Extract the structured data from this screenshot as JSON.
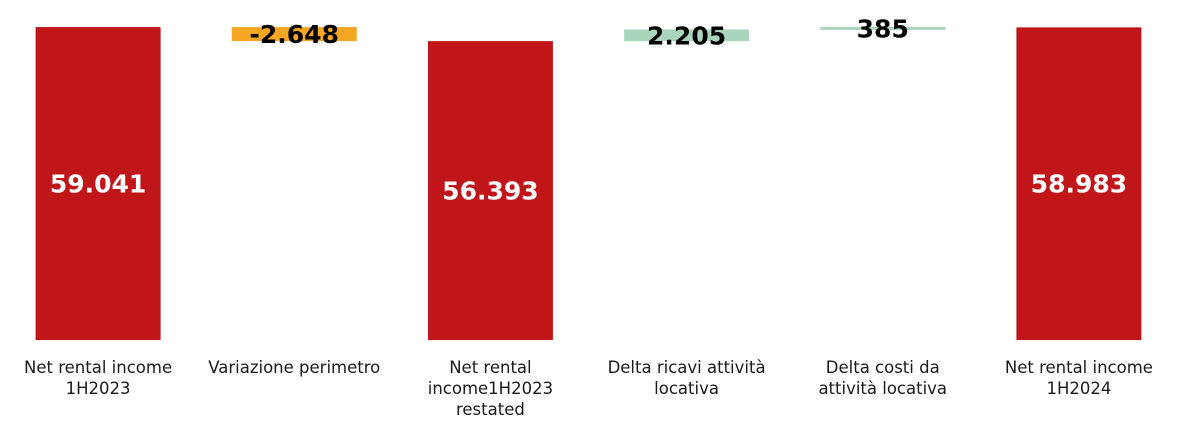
{
  "chart_data": {
    "type": "bar",
    "subtype": "waterfall",
    "categories": [
      [
        "Net rental income",
        "1H2023"
      ],
      [
        "Variazione perimetro"
      ],
      [
        "Net rental",
        "income1H2023",
        "restated"
      ],
      [
        "Delta ricavi attività",
        "locativa"
      ],
      [
        "Delta costi da",
        "attività locativa"
      ],
      [
        "Net rental income",
        "1H2024"
      ]
    ],
    "values": [
      59041,
      -2648,
      56393,
      2205,
      385,
      58983
    ],
    "kinds": [
      "total",
      "delta",
      "total",
      "delta",
      "delta",
      "total"
    ],
    "value_labels": [
      "59.041",
      "-2.648",
      "56.393",
      "2.205",
      "385",
      "58.983"
    ],
    "ylim": [
      0,
      60000
    ],
    "grid": false,
    "legend": "none",
    "colors": {
      "total": "#c0161a",
      "decrease": "#f5a623",
      "increase": "#a8d5bc",
      "total_label": "#ffffff",
      "delta_label": "#000000"
    }
  }
}
